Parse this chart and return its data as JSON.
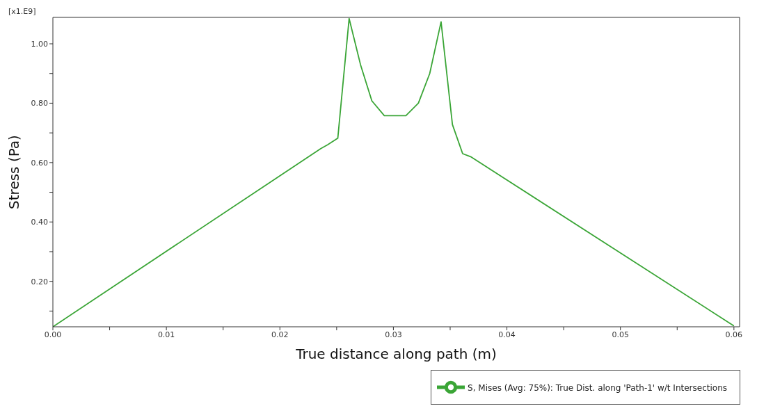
{
  "chart_data": {
    "type": "line",
    "xlabel": "True distance along path (m)",
    "ylabel": "Stress (Pa)",
    "annotations": [
      "[x1.E9]"
    ],
    "series": [
      {
        "name": "S, Mises (Avg: 75%): True Dist. along 'Path-1' w/t Intersections",
        "color": "#3aa536",
        "x": [
          0,
          0.0236,
          0.0242,
          0.0251,
          0.0261,
          0.0271,
          0.0281,
          0.0292,
          0.0311,
          0.0322,
          0.0332,
          0.0342,
          0.0352,
          0.0361,
          0.0368,
          0.06
        ],
        "values": [
          0.047,
          0.647,
          0.66,
          0.682,
          1.085,
          0.93,
          0.808,
          0.758,
          0.758,
          0.8,
          0.9,
          1.074,
          0.728,
          0.63,
          0.62,
          0.05
        ]
      }
    ],
    "xlim": [
      0,
      0.0605
    ],
    "ylim": [
      0.047,
      1.089
    ],
    "xticks": [
      {
        "value": 0,
        "label": "0.00"
      },
      {
        "value": 0.005,
        "label": null
      },
      0.01,
      {
        "value": 0.015,
        "label": null
      },
      0.02,
      {
        "value": 0.025,
        "label": null
      },
      0.03,
      {
        "value": 0.035,
        "label": null
      },
      0.04,
      {
        "value": 0.045,
        "label": null
      },
      0.05,
      {
        "value": 0.055,
        "label": null
      },
      0.06
    ],
    "yticks": [
      {
        "value": 0.1,
        "label": null
      },
      {
        "value": 0.2,
        "label": "0.20"
      },
      {
        "value": 0.3,
        "label": null
      },
      {
        "value": 0.4,
        "label": "0.40"
      },
      {
        "value": 0.5,
        "label": null
      },
      {
        "value": 0.6,
        "label": "0.60"
      },
      {
        "value": 0.7,
        "label": null
      },
      {
        "value": 0.8,
        "label": "0.80"
      },
      {
        "value": 0.9,
        "label": null
      },
      {
        "value": 1.0,
        "label": "1.00"
      }
    ],
    "grid": false,
    "legend": "bottom right",
    "marker": "none",
    "line_style": "solid"
  }
}
